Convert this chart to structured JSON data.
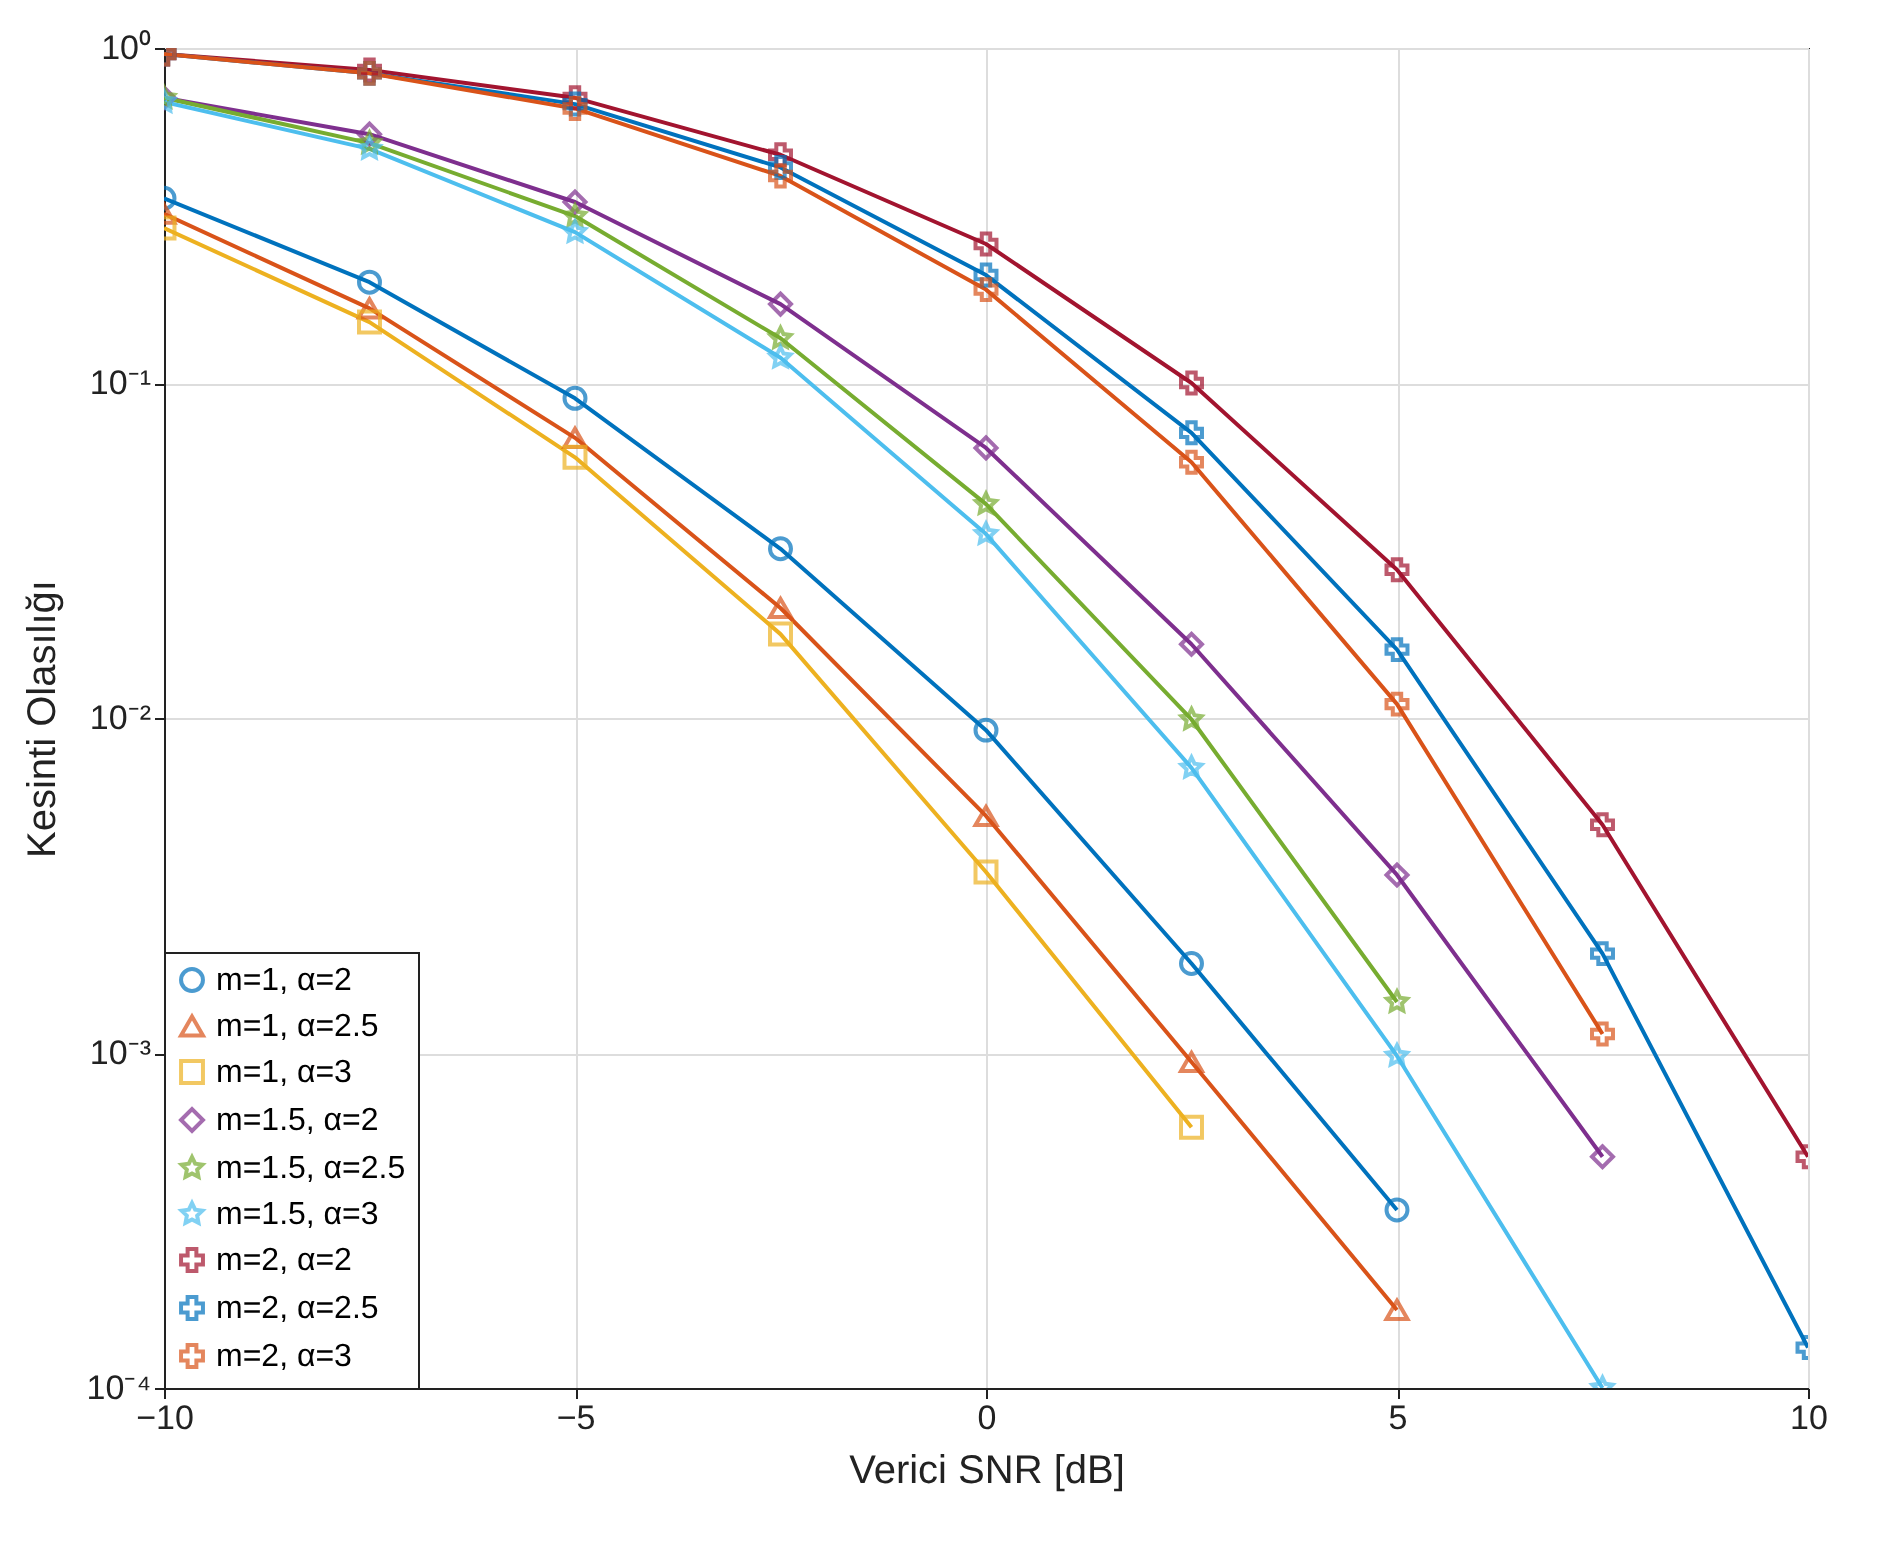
{
  "chart_data": {
    "type": "line",
    "xlabel": "Verici SNR [dB]",
    "ylabel": "Kesinti Olasılığı",
    "x": [
      -10,
      -7.5,
      -5,
      -2.5,
      0,
      2.5,
      5,
      7.5,
      10
    ],
    "series": [
      {
        "name": "m=1, α=2",
        "color": "#0072bd",
        "marker": "circle",
        "values": [
          0.356,
          0.2,
          0.09,
          0.032,
          0.0092,
          0.00185,
          0.00034,
          null,
          null
        ]
      },
      {
        "name": "m=1, α=2.5",
        "color": "#d95319",
        "marker": "triangle",
        "values": [
          0.32,
          0.167,
          0.0686,
          0.0213,
          0.0051,
          0.00094,
          0.000171,
          null,
          null
        ]
      },
      {
        "name": "m=1, α=3",
        "color": "#edb120",
        "marker": "square",
        "values": [
          0.29,
          0.152,
          0.06,
          0.0178,
          0.00347,
          0.0006,
          null,
          null,
          null
        ]
      },
      {
        "name": "m=1.5, α=2",
        "color": "#7e2f8e",
        "marker": "diamond",
        "values": [
          0.71,
          0.553,
          0.347,
          0.172,
          0.064,
          0.0166,
          0.0034,
          0.00049,
          null
        ]
      },
      {
        "name": "m=1.5, α=2.5",
        "color": "#77ac30",
        "marker": "star",
        "values": [
          0.71,
          0.52,
          0.315,
          0.136,
          0.0435,
          0.0099,
          0.00142,
          null,
          null
        ]
      },
      {
        "name": "m=1.5, α=3",
        "color": "#4dbeee",
        "marker": "star",
        "values": [
          0.69,
          0.5,
          0.282,
          0.119,
          0.0354,
          0.0071,
          0.00098,
          0.0001,
          null
        ]
      },
      {
        "name": "m=2, α=2",
        "color": "#a2142f",
        "marker": "cross",
        "values": [
          0.96,
          0.86,
          0.71,
          0.48,
          0.26,
          0.1,
          0.0277,
          0.0048,
          0.00049
        ]
      },
      {
        "name": "m=2, α=2.5",
        "color": "#0072bd",
        "marker": "cross",
        "values": [
          0.96,
          0.84,
          0.68,
          0.44,
          0.21,
          0.071,
          0.016,
          0.00198,
          0.000132
        ]
      },
      {
        "name": "m=2, α=3",
        "color": "#d95319",
        "marker": "cross",
        "values": [
          0.96,
          0.84,
          0.66,
          0.415,
          0.19,
          0.058,
          0.011,
          0.00114,
          null
        ]
      }
    ],
    "log": "y",
    "xlim": [
      -10,
      10
    ],
    "xticks": [
      -10,
      -5,
      0,
      5,
      10
    ],
    "ylim": [
      0.0001,
      1
    ],
    "yticks": [
      {
        "value": 0.0001,
        "label": "10⁻⁴"
      },
      {
        "value": 0.001,
        "label": "10⁻³"
      },
      {
        "value": 0.01,
        "label": "10⁻²"
      },
      {
        "value": 0.1,
        "label": "10⁻¹"
      },
      {
        "value": 1,
        "label": "10⁰"
      }
    ],
    "grid": true,
    "legend": "bottom left",
    "line_style": "solid"
  }
}
